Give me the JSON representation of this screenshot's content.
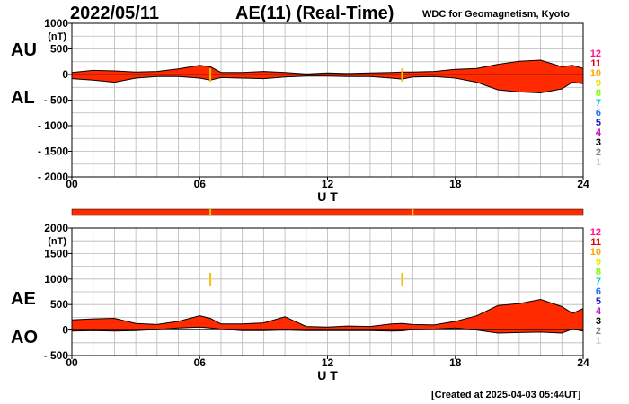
{
  "header": {
    "date": "2022/05/11",
    "title": "AE(11) (Real-Time)",
    "organization": "WDC for Geomagnetism, Kyoto"
  },
  "footer": {
    "created": "[Created at 2025-04-03 05:44UT]"
  },
  "colors": {
    "fill": "#ff2a00",
    "flag_bar": "#ff2a00",
    "flag_mark": "#f2c200"
  },
  "station_legend": [
    {
      "label": "12",
      "color": "#ff1493"
    },
    {
      "label": "11",
      "color": "#e00000"
    },
    {
      "label": "10",
      "color": "#ffa500"
    },
    {
      "label": "9",
      "color": "#e8e800"
    },
    {
      "label": "8",
      "color": "#7cfc00"
    },
    {
      "label": "7",
      "color": "#00ced1"
    },
    {
      "label": "6",
      "color": "#1e6fff"
    },
    {
      "label": "5",
      "color": "#2020c0"
    },
    {
      "label": "4",
      "color": "#cc00cc"
    },
    {
      "label": "3",
      "color": "#000000"
    },
    {
      "label": "2",
      "color": "#808080"
    },
    {
      "label": "1",
      "color": "#d0d0d0"
    }
  ],
  "chart_data": [
    {
      "type": "area",
      "panel": "top",
      "series_labels": [
        "AU",
        "AL"
      ],
      "yunit": "(nT)",
      "xlabel": "U T",
      "ylim": [
        -2000,
        1000
      ],
      "yticks": [
        "1000",
        "500",
        "0",
        "- 500",
        "- 1000",
        "- 1500",
        "- 2000"
      ],
      "ytick_values": [
        1000,
        500,
        0,
        -500,
        -1000,
        -1500,
        -2000
      ],
      "xlim": [
        0,
        24
      ],
      "xticks": [
        "00",
        "06",
        "12",
        "18",
        "24"
      ],
      "xtick_values": [
        0,
        6,
        12,
        18,
        24
      ],
      "x": [
        0,
        1,
        2,
        3,
        4,
        5,
        6,
        6.5,
        7,
        8,
        9,
        10,
        11,
        12,
        13,
        14,
        15,
        15.5,
        16,
        17,
        18,
        19,
        20,
        21,
        22,
        23,
        23.5,
        24
      ],
      "upper": [
        40,
        80,
        70,
        50,
        60,
        110,
        180,
        150,
        40,
        40,
        60,
        40,
        10,
        30,
        20,
        30,
        40,
        50,
        50,
        60,
        100,
        120,
        200,
        260,
        280,
        150,
        180,
        120
      ],
      "lower": [
        -80,
        -110,
        -150,
        -70,
        -40,
        -40,
        -70,
        -110,
        -60,
        -70,
        -80,
        -50,
        -30,
        -30,
        -40,
        -40,
        -70,
        -90,
        -50,
        -40,
        -70,
        -150,
        -300,
        -340,
        -360,
        -280,
        -150,
        -180
      ]
    },
    {
      "type": "area",
      "panel": "bottom",
      "series_labels": [
        "AE",
        "AO"
      ],
      "yunit": "(nT)",
      "xlabel": "U T",
      "ylim": [
        -500,
        2000
      ],
      "yticks": [
        "2000",
        "1500",
        "1000",
        "500",
        "0",
        "- 500"
      ],
      "ytick_values": [
        2000,
        1500,
        1000,
        500,
        0,
        -500
      ],
      "xlim": [
        0,
        24
      ],
      "xticks": [
        "00",
        "06",
        "12",
        "18",
        "24"
      ],
      "xtick_values": [
        0,
        6,
        12,
        18,
        24
      ],
      "x": [
        0,
        1,
        2,
        3,
        4,
        5,
        6,
        6.5,
        7,
        8,
        9,
        10,
        11,
        12,
        13,
        14,
        15,
        15.5,
        16,
        17,
        18,
        19,
        20,
        21,
        22,
        23,
        23.5,
        24
      ],
      "upper": [
        200,
        220,
        230,
        130,
        110,
        170,
        280,
        230,
        120,
        120,
        140,
        260,
        70,
        60,
        80,
        70,
        120,
        130,
        110,
        100,
        170,
        280,
        480,
        520,
        600,
        460,
        330,
        420
      ],
      "lower": [
        -20,
        -10,
        -20,
        -10,
        10,
        40,
        60,
        40,
        20,
        -10,
        -10,
        0,
        -10,
        -10,
        -10,
        -10,
        -20,
        -15,
        10,
        20,
        40,
        0,
        -60,
        -50,
        -40,
        -60,
        20,
        -20
      ]
    }
  ]
}
